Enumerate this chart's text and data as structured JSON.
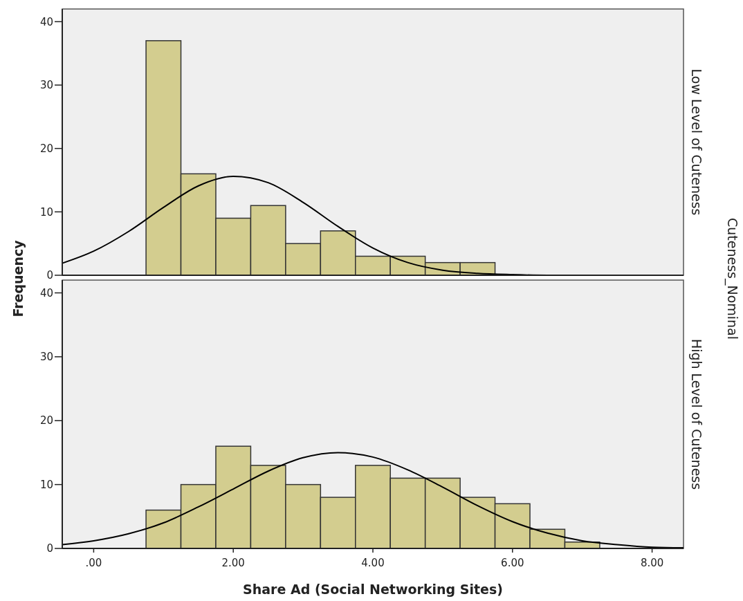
{
  "chart_data": [
    {
      "type": "histogram",
      "title": "Low Level of Cuteness",
      "ylabel": "Frequency",
      "annotations": [
        "Cuteness_Nominal"
      ],
      "bins": [
        0.75,
        1.25,
        1.75,
        2.25,
        2.75,
        3.25,
        3.75,
        4.25,
        4.75,
        5.25,
        5.75
      ],
      "values": [
        37,
        16,
        9,
        11,
        5,
        7,
        3,
        3,
        2,
        2
      ],
      "color": "#d3cd8f",
      "xlim": [
        -0.45,
        8.45
      ],
      "ylim": [
        0,
        42
      ],
      "yticks": [
        0,
        10,
        20,
        30,
        40
      ],
      "tick_labels": "y",
      "grid": false,
      "series": [
        {
          "type": "line",
          "color": "#000000",
          "x": [
            -0.45,
            0,
            0.5,
            1,
            1.5,
            2,
            2.5,
            3,
            3.5,
            4,
            4.5,
            5,
            5.5,
            6,
            6.5,
            7,
            7.5,
            8,
            8.45
          ],
          "values": [
            1.9,
            3.8,
            6.9,
            10.7,
            14.1,
            15.6,
            14.6,
            11.5,
            7.7,
            4.3,
            2.0,
            0.8,
            0.3,
            0.1,
            0,
            0,
            0,
            0,
            0
          ]
        }
      ]
    },
    {
      "type": "histogram",
      "title": "High Level of Cuteness",
      "xlabel": "Share Ad (Social Networking Sites)",
      "bins": [
        0.75,
        1.25,
        1.75,
        2.25,
        2.75,
        3.25,
        3.75,
        4.25,
        4.75,
        5.25,
        5.75,
        6.25,
        6.75,
        7.25
      ],
      "values": [
        6,
        10,
        16,
        13,
        10,
        8,
        13,
        11,
        11,
        8,
        7,
        3,
        1
      ],
      "color": "#d3cd8f",
      "xlim": [
        -0.45,
        8.45
      ],
      "xticks": [
        {
          "value": 0,
          "label": ".00"
        },
        {
          "value": 2,
          "label": "2.00"
        },
        {
          "value": 4,
          "label": "4.00"
        },
        {
          "value": 6,
          "label": "6.00"
        },
        {
          "value": 8,
          "label": "8.00"
        }
      ],
      "ylim": [
        0,
        42
      ],
      "yticks": [
        0,
        10,
        20,
        30,
        40
      ],
      "grid": false,
      "series": [
        {
          "type": "line",
          "color": "#000000",
          "x": [
            -0.45,
            0,
            0.5,
            1,
            1.5,
            2,
            2.5,
            3,
            3.5,
            4,
            4.5,
            5,
            5.5,
            6,
            6.5,
            7,
            7.5,
            8,
            8.45
          ],
          "values": [
            0.6,
            1.2,
            2.3,
            4.0,
            6.5,
            9.3,
            12.1,
            14.2,
            15.0,
            14.3,
            12.3,
            9.6,
            6.7,
            4.2,
            2.4,
            1.2,
            0.6,
            0.2,
            0.1
          ]
        }
      ]
    }
  ]
}
